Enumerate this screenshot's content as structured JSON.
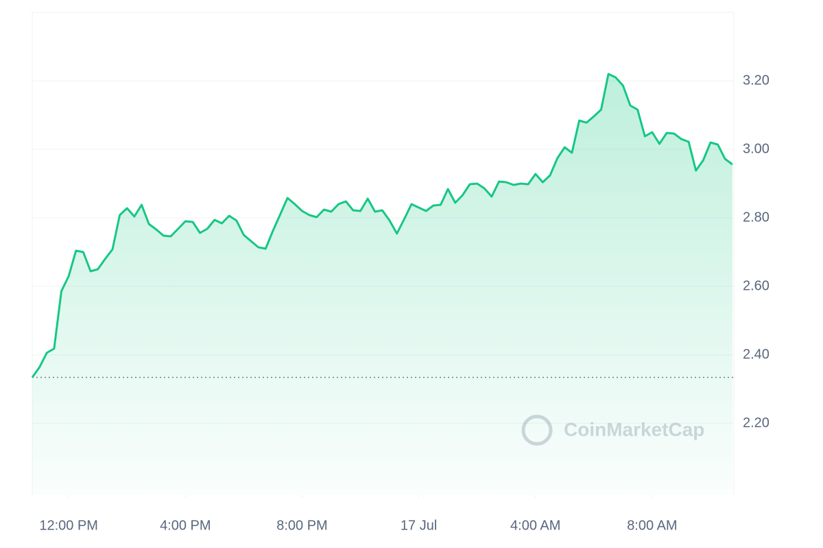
{
  "chart_data": {
    "type": "line",
    "watermark": "CoinMarketCap",
    "color": "#16c784",
    "baseline": 2.334,
    "x": [
      10.75,
      11,
      11.25,
      11.5,
      11.75,
      12,
      12.25,
      12.5,
      12.75,
      13,
      13.25,
      13.5,
      13.75,
      14,
      14.25,
      14.5,
      14.75,
      15,
      15.25,
      15.5,
      15.75,
      16,
      16.25,
      16.5,
      16.75,
      17,
      17.25,
      17.5,
      17.75,
      18,
      18.25,
      18.5,
      18.75,
      19,
      19.25,
      19.5,
      19.75,
      20,
      20.25,
      20.5,
      20.75,
      21,
      21.25,
      21.5,
      21.75,
      22,
      22.25,
      22.5,
      22.75,
      23,
      23.25,
      23.5,
      23.75,
      24,
      24.25,
      24.5,
      24.75,
      25,
      25.25,
      25.5,
      25.75,
      26,
      26.25,
      26.5,
      26.75,
      27,
      27.25,
      27.5,
      27.75,
      28,
      28.25,
      28.5,
      28.75,
      29,
      29.25,
      29.5,
      29.75,
      30,
      30.25,
      30.5,
      30.75,
      31,
      31.25,
      31.5,
      31.75,
      32,
      32.25,
      32.5,
      32.75,
      33,
      33.25,
      33.5,
      33.75,
      34,
      34.25,
      34.5,
      34.75
    ],
    "values": [
      2.334,
      2.364,
      2.406,
      2.418,
      2.586,
      2.63,
      2.704,
      2.7,
      2.644,
      2.65,
      2.68,
      2.708,
      2.808,
      2.828,
      2.804,
      2.838,
      2.782,
      2.766,
      2.748,
      2.746,
      2.768,
      2.79,
      2.788,
      2.756,
      2.768,
      2.794,
      2.784,
      2.806,
      2.792,
      2.75,
      2.732,
      2.714,
      2.71,
      2.762,
      2.81,
      2.858,
      2.84,
      2.82,
      2.808,
      2.802,
      2.824,
      2.818,
      2.84,
      2.848,
      2.822,
      2.82,
      2.856,
      2.818,
      2.822,
      2.792,
      2.754,
      2.796,
      2.84,
      2.83,
      2.82,
      2.836,
      2.838,
      2.884,
      2.844,
      2.866,
      2.898,
      2.9,
      2.886,
      2.862,
      2.906,
      2.904,
      2.896,
      2.9,
      2.898,
      2.928,
      2.904,
      2.924,
      2.974,
      3.006,
      2.99,
      3.084,
      3.078,
      3.096,
      3.116,
      3.22,
      3.21,
      3.186,
      3.128,
      3.116,
      3.038,
      3.05,
      3.016,
      3.048,
      3.046,
      3.03,
      3.022,
      2.938,
      2.968,
      3.02,
      3.014,
      2.972,
      2.956
    ],
    "xlim": [
      10.75,
      34.8
    ],
    "xticks": [
      {
        "value": 12,
        "label": "12:00 PM"
      },
      {
        "value": 16,
        "label": "4:00 PM"
      },
      {
        "value": 20,
        "label": "8:00 PM"
      },
      {
        "value": 24,
        "label": "17 Jul"
      },
      {
        "value": 28,
        "label": "4:00 AM"
      },
      {
        "value": 32,
        "label": "8:00 AM"
      }
    ],
    "ylim": [
      1.99,
      3.4
    ],
    "yticks": [
      {
        "value": 2.2,
        "label": "2.20"
      },
      {
        "value": 2.4,
        "label": "2.40"
      },
      {
        "value": 2.6,
        "label": "2.60"
      },
      {
        "value": 2.8,
        "label": "2.80"
      },
      {
        "value": 3.0,
        "label": "3.00"
      },
      {
        "value": 3.2,
        "label": "3.20"
      }
    ],
    "grid": true
  }
}
